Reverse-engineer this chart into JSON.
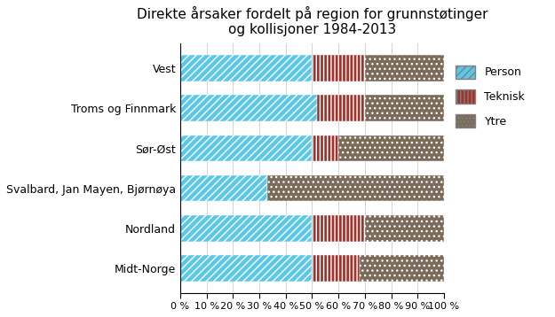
{
  "title": "Direkte årsaker fordelt på region for grunnstøtinger\nog kollisjoner 1984-2013",
  "categories": [
    "Midt-Norge",
    "Nordland",
    "Svalbard, Jan Mayen, Bjørnøya",
    "Sør-Øst",
    "Troms og Finnmark",
    "Vest"
  ],
  "person": [
    50,
    50,
    33,
    50,
    52,
    50
  ],
  "teknisk": [
    18,
    20,
    0,
    10,
    18,
    20
  ],
  "ytre": [
    32,
    30,
    67,
    40,
    30,
    30
  ],
  "color_person": "#5BC8E8",
  "color_teknisk": "#A0332B",
  "color_ytre": "#7B6B5A",
  "legend_person": "Person",
  "legend_teknisk": "Teknisk",
  "legend_ytre": "Ytre",
  "title_fontsize": 11,
  "tick_fontsize": 8,
  "label_fontsize": 9,
  "background_color": "#FFFFFF"
}
